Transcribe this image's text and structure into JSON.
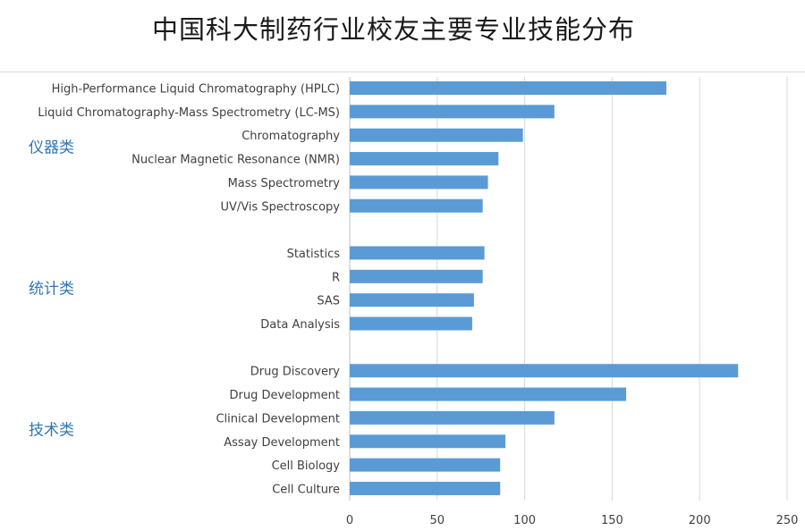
{
  "title": "中国科大制药行业校友主要专业技能分布",
  "chart_data": {
    "type": "bar",
    "orientation": "horizontal",
    "title": "中国科大制药行业校友主要专业技能分布",
    "xlim": [
      0,
      250
    ],
    "xticks": [
      0,
      50,
      100,
      150,
      200,
      250
    ],
    "grid": true,
    "bar_color": "#5b9bd5",
    "groups": [
      {
        "name": "仪器类",
        "categories": [
          "High-Performance Liquid Chromatography (HPLC)",
          "Liquid Chromatography-Mass Spectrometry (LC-MS)",
          "Chromatography",
          "Nuclear Magnetic Resonance (NMR)",
          "Mass Spectrometry",
          "UV/Vis Spectroscopy"
        ],
        "values": [
          181,
          117,
          99,
          85,
          79,
          76
        ]
      },
      {
        "name": "统计类",
        "categories": [
          "Statistics",
          "R",
          "SAS",
          "Data Analysis"
        ],
        "values": [
          77,
          76,
          71,
          70
        ]
      },
      {
        "name": "技术类",
        "categories": [
          "Drug Discovery",
          "Drug Development",
          "Clinical Development",
          "Assay Development",
          "Cell Biology",
          "Cell Culture"
        ],
        "values": [
          222,
          158,
          117,
          89,
          86,
          86
        ]
      }
    ]
  }
}
